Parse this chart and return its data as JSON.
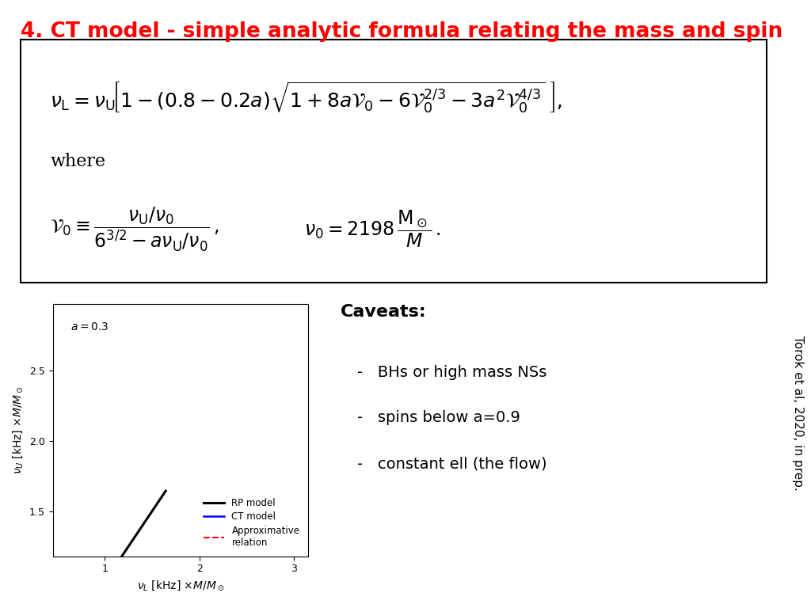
{
  "title": "4. CT model - simple analytic formula relating the mass and spin",
  "title_color": "#FF0000",
  "title_fontsize": 19,
  "plot": {
    "a_label": "$a = 0.3$",
    "xlabel": "$\\nu_L$ [kHz] $\\times M/M_\\odot$",
    "ylabel": "$\\nu_U$ [kHz] $\\times M/M_\\odot$",
    "xlim": [
      0.45,
      3.15
    ],
    "ylim": [
      1.18,
      2.97
    ],
    "xticks": [
      1,
      2,
      3
    ],
    "yticks": [
      1.5,
      2.0,
      2.5
    ],
    "legend_rp": "RP model",
    "legend_ct": "CT model",
    "legend_approx": "Approximative\nrelation"
  },
  "caveats_title": "Caveats:",
  "caveats": [
    "BHs or high mass NSs",
    "spins below a=0.9",
    "constant ell (the flow)"
  ],
  "side_text": "Torok et al, 2020, in prep.",
  "background_color": "#FFFFFF"
}
